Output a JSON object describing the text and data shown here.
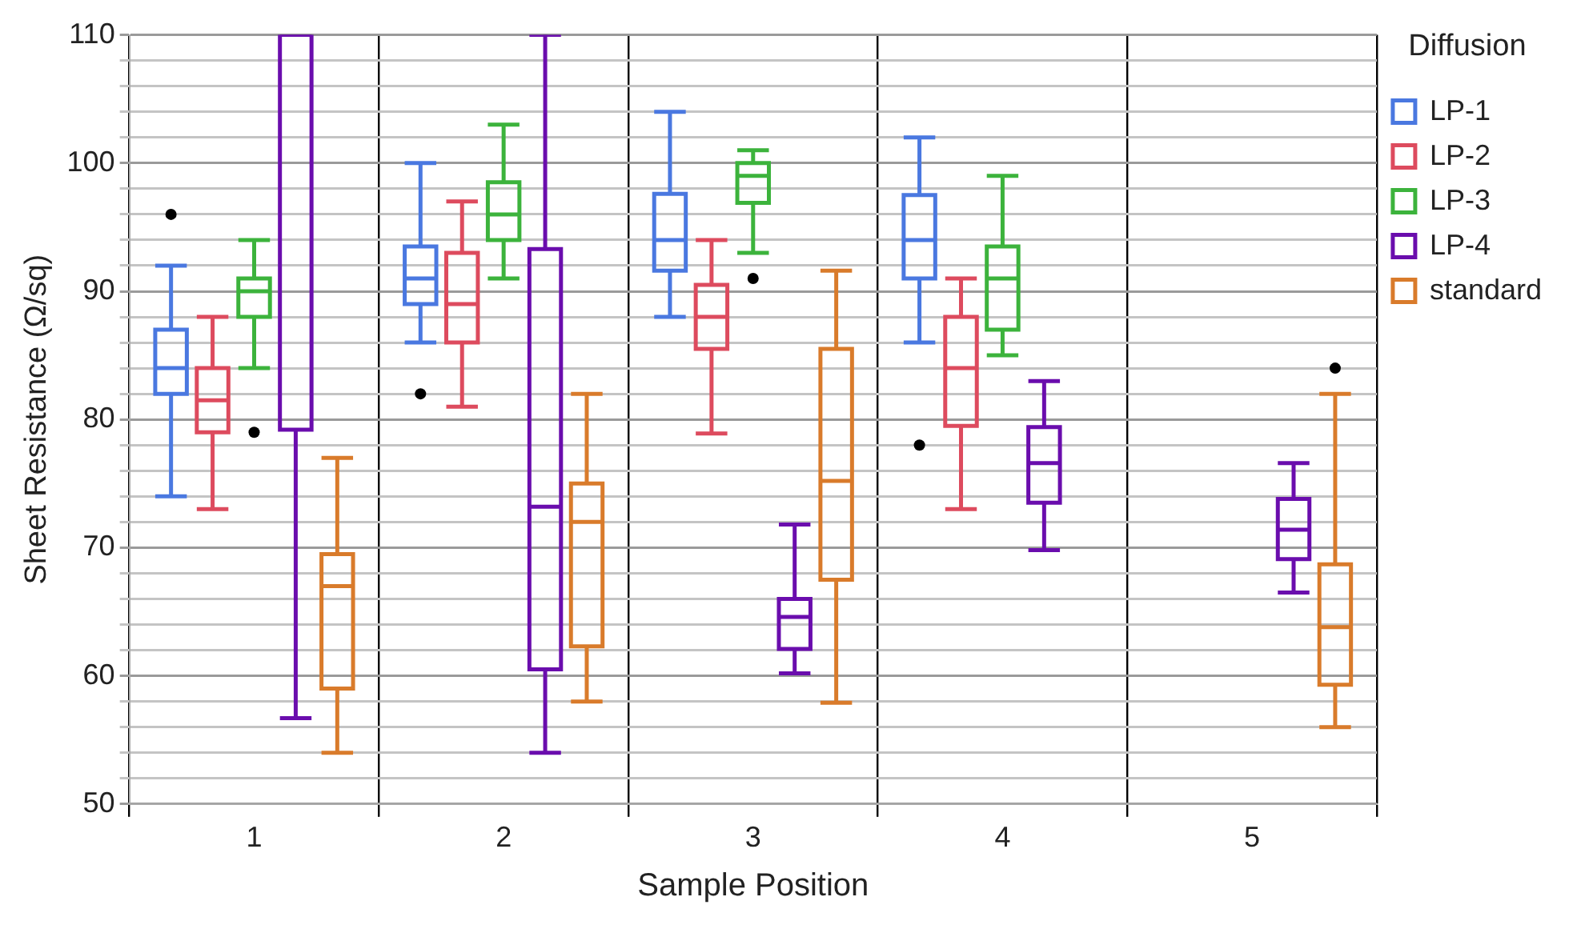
{
  "chart_data": {
    "type": "box",
    "xlabel": "Sample Position",
    "ylabel": "Sheet Resistance (Ω/sq)",
    "legend_title": "Diffusion",
    "legend": "top right",
    "grid": true,
    "categories": [
      "1",
      "2",
      "3",
      "4",
      "5"
    ],
    "ylim": [
      50,
      110
    ],
    "yticks": [
      50,
      {
        "value": 52,
        "label": null
      },
      {
        "value": 54,
        "label": null
      },
      {
        "value": 56,
        "label": null
      },
      {
        "value": 58,
        "label": null
      },
      60,
      {
        "value": 62,
        "label": null
      },
      {
        "value": 64,
        "label": null
      },
      {
        "value": 66,
        "label": null
      },
      {
        "value": 68,
        "label": null
      },
      70,
      {
        "value": 72,
        "label": null
      },
      {
        "value": 74,
        "label": null
      },
      {
        "value": 76,
        "label": null
      },
      {
        "value": 78,
        "label": null
      },
      80,
      {
        "value": 82,
        "label": null
      },
      {
        "value": 84,
        "label": null
      },
      {
        "value": 86,
        "label": null
      },
      {
        "value": 88,
        "label": null
      },
      90,
      {
        "value": 92,
        "label": null
      },
      {
        "value": 94,
        "label": null
      },
      {
        "value": 96,
        "label": null
      },
      {
        "value": 98,
        "label": null
      },
      100,
      {
        "value": 102,
        "label": null
      },
      {
        "value": 104,
        "label": null
      },
      {
        "value": 106,
        "label": null
      },
      {
        "value": 108,
        "label": null
      },
      110
    ],
    "series": [
      {
        "name": "LP-1",
        "color": "#4a78e0",
        "boxes": [
          {
            "low": 74,
            "q1": 82,
            "median": 84,
            "q3": 87,
            "high": 92,
            "outliers": [
              96
            ]
          },
          {
            "low": 86,
            "q1": 89,
            "median": 91,
            "q3": 93.5,
            "high": 100,
            "outliers": [
              82
            ]
          },
          {
            "low": 88,
            "q1": 91.6,
            "median": 94,
            "q3": 97.6,
            "high": 104
          },
          {
            "low": 86,
            "q1": 91,
            "median": 94,
            "q3": 97.5,
            "high": 102,
            "outliers": [
              78
            ]
          },
          null
        ]
      },
      {
        "name": "LP-2",
        "color": "#dd4b5e",
        "boxes": [
          {
            "low": 73,
            "q1": 79,
            "median": 81.5,
            "q3": 84,
            "high": 88
          },
          {
            "low": 81,
            "q1": 86,
            "median": 89,
            "q3": 93,
            "high": 97
          },
          {
            "low": 78.9,
            "q1": 85.5,
            "median": 88,
            "q3": 90.5,
            "high": 94
          },
          {
            "low": 73,
            "q1": 79.5,
            "median": 84,
            "q3": 88,
            "high": 91
          },
          null
        ]
      },
      {
        "name": "LP-3",
        "color": "#3cb33c",
        "boxes": [
          {
            "low": 84,
            "q1": 88,
            "median": 90,
            "q3": 91,
            "high": 94,
            "outliers": [
              79
            ]
          },
          {
            "low": 91,
            "q1": 94,
            "median": 96,
            "q3": 98.5,
            "high": 103
          },
          {
            "low": 93,
            "q1": 96.9,
            "median": 99,
            "q3": 100,
            "high": 101,
            "outliers": [
              91
            ]
          },
          {
            "low": 85,
            "q1": 87,
            "median": 91,
            "q3": 93.5,
            "high": 99
          },
          null
        ]
      },
      {
        "name": "LP-4",
        "color": "#6a0dad",
        "boxes": [
          {
            "low": 56.7,
            "q1": 79.2,
            "median": null,
            "q3": 110,
            "high": 110
          },
          {
            "low": 54,
            "q1": 60.5,
            "median": 73.2,
            "q3": 93.3,
            "high": 110
          },
          {
            "low": 60.2,
            "q1": 62.1,
            "median": 64.6,
            "q3": 66,
            "high": 71.8
          },
          {
            "low": 69.8,
            "q1": 73.5,
            "median": 76.6,
            "q3": 79.4,
            "high": 83
          },
          {
            "low": 66.5,
            "q1": 69.1,
            "median": 71.4,
            "q3": 73.8,
            "high": 76.6
          }
        ]
      },
      {
        "name": "standard",
        "color": "#d97b2b",
        "boxes": [
          {
            "low": 54,
            "q1": 59,
            "median": 67,
            "q3": 69.5,
            "high": 77
          },
          {
            "low": 58,
            "q1": 62.3,
            "median": 72,
            "q3": 75,
            "high": 82
          },
          {
            "low": 57.9,
            "q1": 67.5,
            "median": 75.2,
            "q3": 85.5,
            "high": 91.6
          },
          null,
          {
            "low": 56,
            "q1": 59.3,
            "median": 63.8,
            "q3": 68.7,
            "high": 82,
            "outliers": [
              84
            ]
          }
        ]
      }
    ]
  }
}
